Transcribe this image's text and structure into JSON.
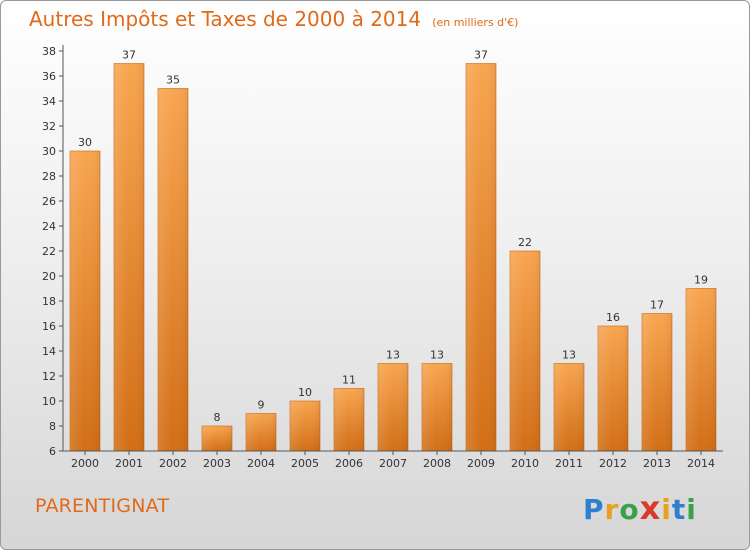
{
  "chart_data": {
    "type": "bar",
    "title": "Autres Impôts et Taxes de 2000 à 2014",
    "subtitle": "(en milliers d'€)",
    "categories": [
      "2000",
      "2001",
      "2002",
      "2003",
      "2004",
      "2005",
      "2006",
      "2007",
      "2008",
      "2009",
      "2010",
      "2011",
      "2012",
      "2013",
      "2014"
    ],
    "values": [
      30,
      37,
      35,
      8,
      9,
      10,
      11,
      13,
      13,
      37,
      22,
      13,
      16,
      17,
      19
    ],
    "ylim": [
      6,
      38
    ],
    "yticks": [
      6,
      8,
      10,
      12,
      14,
      16,
      18,
      20,
      22,
      24,
      26,
      28,
      30,
      32,
      34,
      36,
      38
    ],
    "grid": false,
    "bar_color": "#f0902e"
  },
  "commune": "PARENTIGNAT",
  "logo": {
    "text": "Proxiti",
    "letters": [
      "P",
      "r",
      "o",
      "x",
      "i",
      "t",
      "i"
    ],
    "colors": [
      "#2f7fd0",
      "#e8a020",
      "#3aa04a",
      "#d93a2a",
      "#e8a020",
      "#2f7fd0",
      "#3aa04a"
    ]
  }
}
